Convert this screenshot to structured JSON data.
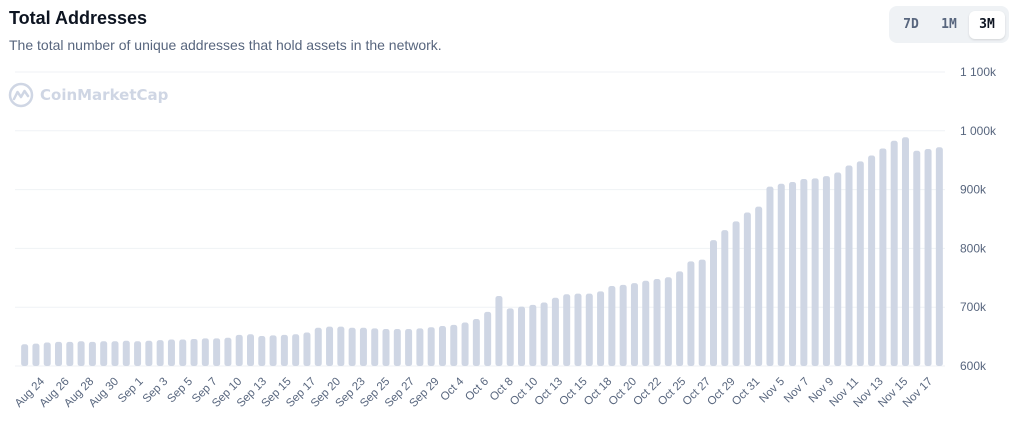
{
  "header": {
    "title": "Total Addresses",
    "subtitle": "The total number of unique addresses that hold assets in the network."
  },
  "range_selector": {
    "options": [
      "7D",
      "1M",
      "3M"
    ],
    "active": "3M"
  },
  "watermark": {
    "text": "CoinMarketCap",
    "icon": "coinmarketcap-logo-icon"
  },
  "colors": {
    "bar": "#cfd6e4",
    "grid": "#eff2f5",
    "axis_text": "#58667e",
    "title": "#0d1421"
  },
  "chart_data": {
    "type": "bar",
    "title": "Total Addresses",
    "ylim": [
      600000,
      1100000
    ],
    "yticks": [
      600000,
      700000,
      800000,
      900000,
      1000000,
      1100000
    ],
    "ytick_labels": [
      "600k",
      "700k",
      "800k",
      "900k",
      "1 000k",
      "1 100k"
    ],
    "xtick_labels": [
      "Aug 24",
      "Aug 26",
      "Aug 28",
      "Aug 30",
      "Sep 1",
      "Sep 3",
      "Sep 5",
      "Sep 7",
      "Sep 10",
      "Sep 13",
      "Sep 15",
      "Sep 17",
      "Sep 20",
      "Sep 23",
      "Sep 25",
      "Sep 27",
      "Sep 29",
      "Oct 4",
      "Oct 6",
      "Oct 8",
      "Oct 10",
      "Oct 13",
      "Oct 15",
      "Oct 18",
      "Oct 20",
      "Oct 22",
      "Oct 25",
      "Oct 27",
      "Oct 29",
      "Oct 31",
      "Nov 5",
      "Nov 7",
      "Nov 9",
      "Nov 11",
      "Nov 13",
      "Nov 15",
      "Nov 17"
    ],
    "grid": true,
    "series": [
      {
        "values": [
          637000,
          638000,
          640000,
          641000,
          641000,
          642000,
          641000,
          642000,
          642000,
          643000,
          642000,
          643000,
          644000,
          645000,
          645000,
          646000,
          647000,
          647000,
          648000,
          653000,
          654000,
          651000,
          652000,
          653000,
          654000,
          657000,
          665000,
          667000,
          667000,
          665000,
          665000,
          664000,
          663000,
          663000,
          663000,
          664000,
          666000,
          668000,
          670000,
          674000,
          680000,
          692000,
          719000,
          698000,
          701000,
          704000,
          708000,
          716000,
          722000,
          723000,
          723000,
          727000,
          736000,
          738000,
          741000,
          745000,
          748000,
          751000,
          761000,
          778000,
          781000,
          814000,
          831000,
          846000,
          861000,
          871000,
          905000,
          910000,
          913000,
          918000,
          919000,
          923000,
          929000,
          941000,
          948000,
          958000,
          970000,
          983000,
          989000,
          966000,
          969000,
          972000
        ]
      }
    ]
  }
}
